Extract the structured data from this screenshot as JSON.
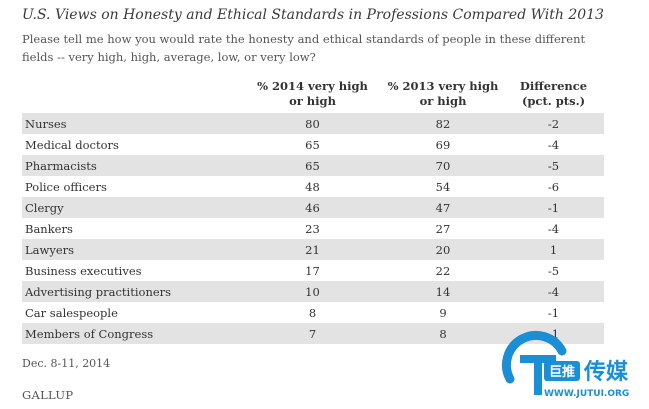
{
  "title": "U.S. Views on Honesty and Ethical Standards in Professions Compared With 2013",
  "subtitle": "Please tell me how you would rate the honesty and ethical standards of people in these different fields -- very high, high, average, low, or very low?",
  "chart_data": {
    "type": "table",
    "columns": [
      "",
      "% 2014 very high or high",
      "% 2013 very high or high",
      "Difference (pct. pts.)"
    ],
    "column_lines": [
      [
        ""
      ],
      [
        "% 2014 very high",
        "or high"
      ],
      [
        "% 2013 very high",
        "or high"
      ],
      [
        "Difference",
        "(pct. pts.)"
      ]
    ],
    "rows": [
      [
        "Nurses",
        "80",
        "82",
        "-2"
      ],
      [
        "Medical doctors",
        "65",
        "69",
        "-4"
      ],
      [
        "Pharmacists",
        "65",
        "70",
        "-5"
      ],
      [
        "Police officers",
        "48",
        "54",
        "-6"
      ],
      [
        "Clergy",
        "46",
        "47",
        "-1"
      ],
      [
        "Bankers",
        "23",
        "27",
        "-4"
      ],
      [
        "Lawyers",
        "21",
        "20",
        "1"
      ],
      [
        "Business executives",
        "17",
        "22",
        "-5"
      ],
      [
        "Advertising practitioners",
        "10",
        "14",
        "-4"
      ],
      [
        "Car salespeople",
        "8",
        "9",
        "-1"
      ],
      [
        "Members of Congress",
        "7",
        "8",
        "-1"
      ]
    ]
  },
  "footnote": "Dec. 8-11, 2014",
  "source": "GALLUP",
  "watermark": {
    "text_cn": "巨推",
    "text_brand": "传媒",
    "url": "WWW.JUTUI.ORG",
    "color": "#1a8fd6"
  }
}
